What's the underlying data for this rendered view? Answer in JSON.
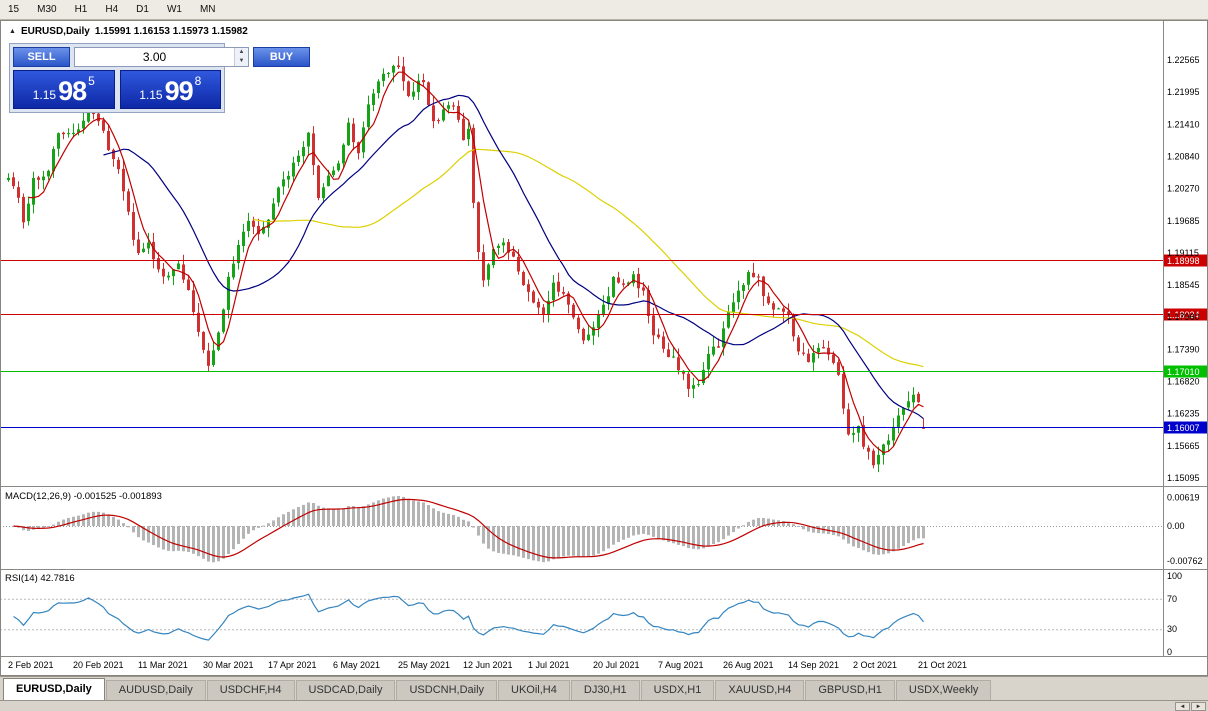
{
  "toolbar": {
    "timeframes": [
      "15",
      "M30",
      "H1",
      "H4",
      "D1",
      "W1",
      "MN"
    ]
  },
  "chart_header": {
    "symbol": "EURUSD,Daily",
    "ohlc": "1.15991 1.16153 1.15973 1.15982",
    "collapse_icon": "▲"
  },
  "trade_panel": {
    "sell_label": "SELL",
    "buy_label": "BUY",
    "lot": "3.00",
    "spinner_up": "▲",
    "spinner_down": "▼",
    "sell_price": {
      "prefix": "1.15",
      "main": "98",
      "sup": "5"
    },
    "buy_price": {
      "prefix": "1.15",
      "main": "99",
      "sup": "8"
    }
  },
  "price_axis_labels": [
    "1.22565",
    "1.21995",
    "1.21410",
    "1.20840",
    "1.20270",
    "1.19685",
    "1.19115",
    "1.18545",
    "1.17960",
    "1.17390",
    "1.16820",
    "1.16235",
    "1.15665",
    "1.15095"
  ],
  "hlines": [
    {
      "price": 1.18998,
      "label": "1.18998",
      "color": "#cc0000"
    },
    {
      "price": 1.18024,
      "label": "1.18024",
      "color": "#cc0000"
    },
    {
      "price": 1.1701,
      "label": "1.17010",
      "color": "#00c000"
    },
    {
      "price": 1.16007,
      "label": "1.16007",
      "color": "#0000cc"
    }
  ],
  "macd_panel": {
    "label": "MACD(12,26,9) -0.001525 -0.001893",
    "axis_labels": [
      "0.00619",
      "0.00",
      "-0.00762"
    ],
    "axis_values": [
      0.00619,
      0,
      -0.00762
    ]
  },
  "rsi_panel": {
    "label": "RSI(14) 42.7816",
    "axis_labels": [
      "100",
      "70",
      "30",
      "0"
    ],
    "axis_values": [
      100,
      70,
      30,
      0
    ]
  },
  "date_axis": [
    "2 Feb 2021",
    "20 Feb 2021",
    "11 Mar 2021",
    "30 Mar 2021",
    "17 Apr 2021",
    "6 May 2021",
    "25 May 2021",
    "12 Jun 2021",
    "1 Jul 2021",
    "20 Jul 2021",
    "7 Aug 2021",
    "26 Aug 2021",
    "14 Sep 2021",
    "2 Oct 2021",
    "21 Oct 2021"
  ],
  "tabs": [
    {
      "label": "EURUSD,Daily",
      "active": true
    },
    {
      "label": "AUDUSD,Daily",
      "active": false
    },
    {
      "label": "USDCHF,H4",
      "active": false
    },
    {
      "label": "USDCAD,Daily",
      "active": false
    },
    {
      "label": "USDCNH,Daily",
      "active": false
    },
    {
      "label": "UKOil,H4",
      "active": false
    },
    {
      "label": "DJ30,H1",
      "active": false
    },
    {
      "label": "USDX,H1",
      "active": false
    },
    {
      "label": "XAUUSD,H4",
      "active": false
    },
    {
      "label": "GBPUSD,H1",
      "active": false
    },
    {
      "label": "USDX,Weekly",
      "active": false
    }
  ],
  "bottom": {
    "scroll_left": "◄",
    "scroll_right": "►"
  },
  "colors": {
    "candle_up": "#17a317",
    "candle_down": "#d03030",
    "macd_hist": "#b4b4b4",
    "macd_signal": "#c00000",
    "rsi_line": "#3585c0"
  },
  "chart_data": {
    "type": "candlestick",
    "symbol": "EURUSD",
    "timeframe": "Daily",
    "title": "EURUSD,Daily",
    "current_bar": {
      "open": 1.15991,
      "high": 1.16153,
      "low": 1.15973,
      "close": 1.15982
    },
    "y_axis_ticks": [
      1.22565,
      1.21995,
      1.2141,
      1.2084,
      1.2027,
      1.19685,
      1.19115,
      1.18545,
      1.1796,
      1.1739,
      1.1682,
      1.16235,
      1.15665,
      1.15095
    ],
    "x_axis_dates": [
      "2 Feb 2021",
      "20 Feb 2021",
      "11 Mar 2021",
      "30 Mar 2021",
      "17 Apr 2021",
      "6 May 2021",
      "25 May 2021",
      "12 Jun 2021",
      "1 Jul 2021",
      "20 Jul 2021",
      "7 Aug 2021",
      "26 Aug 2021",
      "14 Sep 2021",
      "2 Oct 2021",
      "21 Oct 2021"
    ],
    "horizontal_levels": [
      1.18998,
      1.18024,
      1.1701,
      1.16007
    ],
    "num_candles": 184,
    "close_path_anchors": [
      [
        0,
        1.2042
      ],
      [
        2,
        1.201
      ],
      [
        3,
        1.1968
      ],
      [
        5,
        1.204
      ],
      [
        8,
        1.206
      ],
      [
        10,
        1.212
      ],
      [
        12,
        1.2118
      ],
      [
        14,
        1.2135
      ],
      [
        16,
        1.2168
      ],
      [
        18,
        1.2155
      ],
      [
        20,
        1.2095
      ],
      [
        22,
        1.206
      ],
      [
        24,
        1.198
      ],
      [
        26,
        1.1905
      ],
      [
        28,
        1.1928
      ],
      [
        31,
        1.1868
      ],
      [
        34,
        1.1892
      ],
      [
        36,
        1.185
      ],
      [
        38,
        1.1775
      ],
      [
        40,
        1.1712
      ],
      [
        42,
        1.1762
      ],
      [
        44,
        1.1862
      ],
      [
        46,
        1.193
      ],
      [
        48,
        1.1962
      ],
      [
        50,
        1.1945
      ],
      [
        52,
        1.1978
      ],
      [
        54,
        1.203
      ],
      [
        56,
        1.2048
      ],
      [
        58,
        1.209
      ],
      [
        60,
        1.212
      ],
      [
        62,
        1.2015
      ],
      [
        64,
        1.2052
      ],
      [
        66,
        1.2068
      ],
      [
        68,
        1.2148
      ],
      [
        70,
        1.2082
      ],
      [
        72,
        1.218
      ],
      [
        74,
        1.2222
      ],
      [
        76,
        1.2228
      ],
      [
        78,
        1.225
      ],
      [
        80,
        1.2192
      ],
      [
        83,
        1.2222
      ],
      [
        85,
        1.2142
      ],
      [
        87,
        1.2165
      ],
      [
        89,
        1.2178
      ],
      [
        91,
        1.2115
      ],
      [
        92,
        1.2128
      ],
      [
        93,
        1.1995
      ],
      [
        94,
        1.191
      ],
      [
        95,
        1.1865
      ],
      [
        97,
        1.192
      ],
      [
        99,
        1.1928
      ],
      [
        101,
        1.19
      ],
      [
        103,
        1.1848
      ],
      [
        105,
        1.1825
      ],
      [
        107,
        1.1795
      ],
      [
        109,
        1.1858
      ],
      [
        111,
        1.184
      ],
      [
        113,
        1.1795
      ],
      [
        115,
        1.1762
      ],
      [
        117,
        1.1782
      ],
      [
        119,
        1.1822
      ],
      [
        121,
        1.1862
      ],
      [
        123,
        1.185
      ],
      [
        125,
        1.1868
      ],
      [
        127,
        1.1838
      ],
      [
        129,
        1.1765
      ],
      [
        131,
        1.1742
      ],
      [
        133,
        1.172
      ],
      [
        135,
        1.17
      ],
      [
        136,
        1.1668
      ],
      [
        138,
        1.1682
      ],
      [
        140,
        1.173
      ],
      [
        142,
        1.1748
      ],
      [
        144,
        1.1805
      ],
      [
        146,
        1.1842
      ],
      [
        148,
        1.1878
      ],
      [
        150,
        1.1865
      ],
      [
        152,
        1.1818
      ],
      [
        154,
        1.1812
      ],
      [
        156,
        1.1808
      ],
      [
        158,
        1.1728
      ],
      [
        160,
        1.1722
      ],
      [
        162,
        1.1745
      ],
      [
        164,
        1.173
      ],
      [
        166,
        1.169
      ],
      [
        168,
        1.158
      ],
      [
        170,
        1.1598
      ],
      [
        171,
        1.1572
      ],
      [
        173,
        1.1532
      ],
      [
        175,
        1.1562
      ],
      [
        177,
        1.1594
      ],
      [
        179,
        1.1635
      ],
      [
        181,
        1.166
      ],
      [
        182,
        1.1645
      ],
      [
        183,
        1.1598
      ]
    ],
    "indicators": {
      "moving_averages": [
        {
          "period": 5,
          "color": "#c00000"
        },
        {
          "period": 20,
          "color": "#000080"
        },
        {
          "period": 50,
          "color": "#ddd000"
        }
      ],
      "macd": {
        "params": "12,26,9",
        "current_values": [
          -0.001525,
          -0.001893
        ],
        "axis": [
          0.00619,
          0,
          -0.00762
        ]
      },
      "rsi": {
        "params": "14",
        "current_value": 42.7816,
        "levels": [
          70,
          30
        ]
      }
    }
  }
}
